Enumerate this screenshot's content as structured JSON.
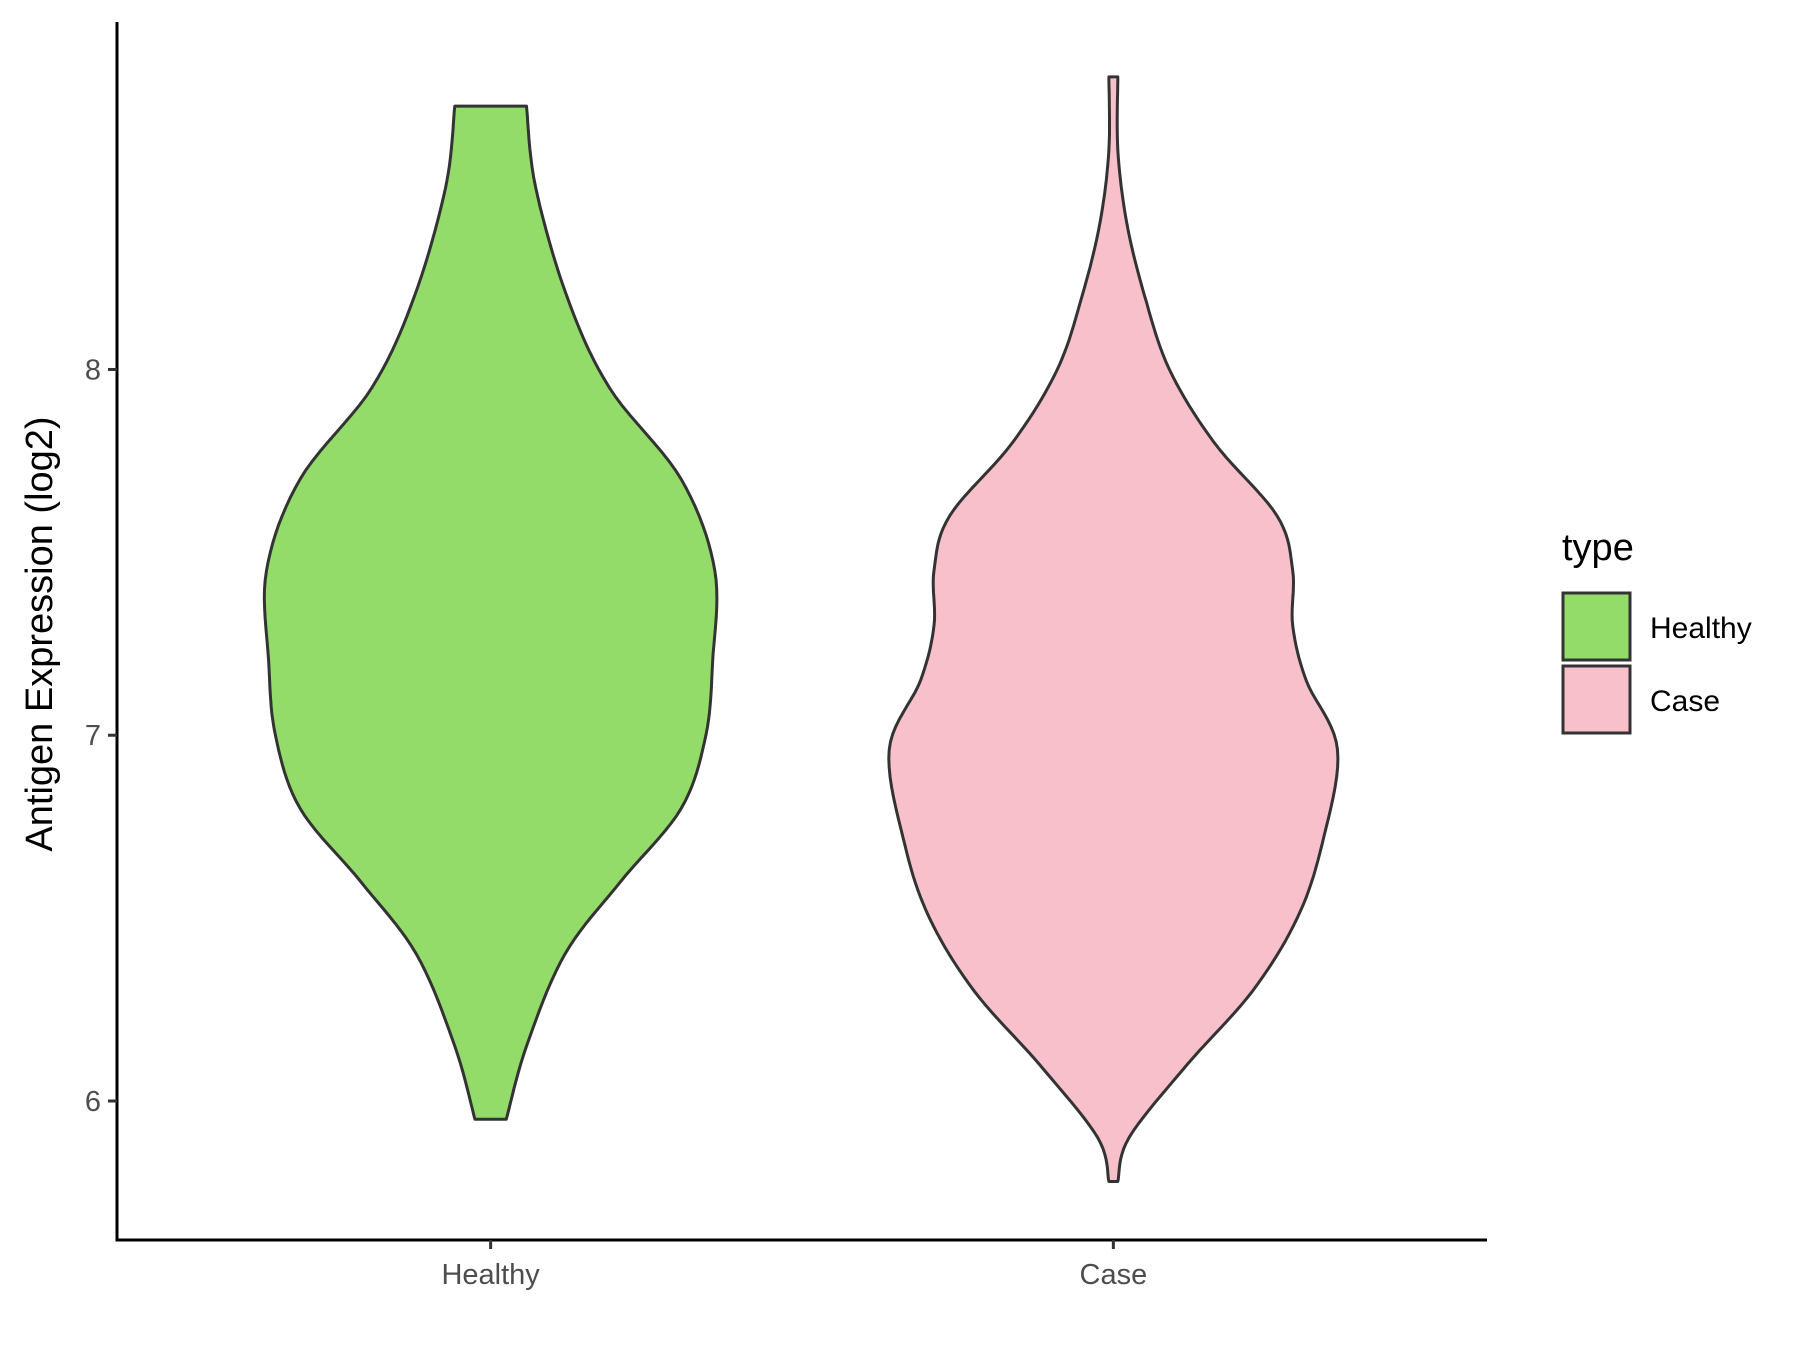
{
  "chart_data": {
    "type": "violin",
    "title": "",
    "xlabel": "",
    "ylabel": "Antigen Expression (log2)",
    "categories": [
      "Healthy",
      "Case"
    ],
    "ylim": [
      5.62,
      8.95
    ],
    "yticks": [
      6,
      7,
      8
    ],
    "grid": false,
    "series": [
      {
        "name": "Healthy",
        "color": "#93DC6A",
        "min": 5.95,
        "max": 8.72,
        "profile": [
          [
            5.95,
            0.07
          ],
          [
            6.15,
            0.16
          ],
          [
            6.4,
            0.33
          ],
          [
            6.6,
            0.58
          ],
          [
            6.8,
            0.85
          ],
          [
            7.0,
            0.96
          ],
          [
            7.2,
            0.99
          ],
          [
            7.45,
            1.0
          ],
          [
            7.7,
            0.85
          ],
          [
            7.95,
            0.53
          ],
          [
            8.2,
            0.34
          ],
          [
            8.5,
            0.2
          ],
          [
            8.72,
            0.16
          ]
        ]
      },
      {
        "name": "Case",
        "color": "#F8C0CB",
        "min": 5.78,
        "max": 8.8,
        "profile": [
          [
            5.78,
            0.02
          ],
          [
            5.9,
            0.07
          ],
          [
            6.1,
            0.33
          ],
          [
            6.3,
            0.62
          ],
          [
            6.5,
            0.82
          ],
          [
            6.7,
            0.93
          ],
          [
            6.96,
            1.0
          ],
          [
            7.15,
            0.86
          ],
          [
            7.3,
            0.8
          ],
          [
            7.45,
            0.8
          ],
          [
            7.6,
            0.73
          ],
          [
            7.8,
            0.45
          ],
          [
            8.0,
            0.25
          ],
          [
            8.2,
            0.14
          ],
          [
            8.4,
            0.06
          ],
          [
            8.6,
            0.02
          ],
          [
            8.8,
            0.02
          ]
        ]
      }
    ],
    "legend": {
      "title": "type",
      "position": "right",
      "items": [
        {
          "label": "Healthy",
          "color": "#93DC6A"
        },
        {
          "label": "Case",
          "color": "#F8C0CB"
        }
      ]
    }
  }
}
